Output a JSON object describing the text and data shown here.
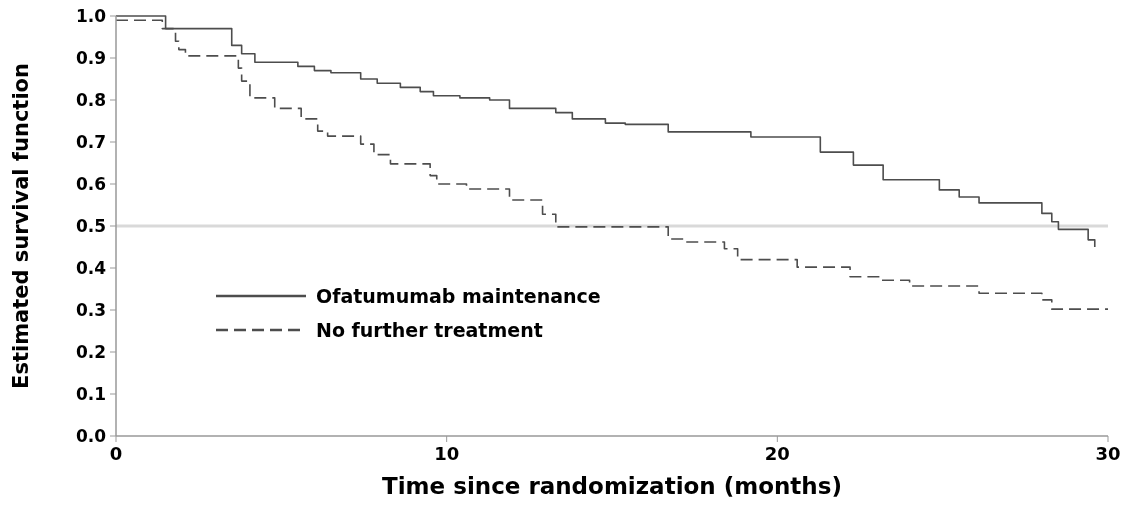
{
  "chart_data": {
    "type": "step",
    "xlabel": "Time since randomization (months)",
    "ylabel": "Estimated survival function",
    "xlim": [
      0,
      30
    ],
    "xticks": [
      0,
      10,
      20,
      30
    ],
    "ylim": [
      0,
      1.0
    ],
    "yticks": [
      {
        "value": 0,
        "label": "0.0"
      },
      {
        "value": 0.1,
        "label": "0.1"
      },
      {
        "value": 0.2,
        "label": "0.2"
      },
      {
        "value": 0.3,
        "label": "0.3"
      },
      {
        "value": 0.4,
        "label": "0.4"
      },
      {
        "value": 0.5,
        "label": "0.5"
      },
      {
        "value": 0.6,
        "label": "0.6"
      },
      {
        "value": 0.7,
        "label": "0.7"
      },
      {
        "value": 0.8,
        "label": "0.8"
      },
      {
        "value": 0.9,
        "label": "0.9"
      },
      {
        "value": 1.0,
        "label": "1.0"
      }
    ],
    "grid": false,
    "legend": "bottom left",
    "marker": "none",
    "ref_lines": [
      {
        "axis": "y",
        "value": 0.5,
        "color": "#d9d9d9"
      }
    ],
    "series": [
      {
        "name": "Ofatumumab maintenance",
        "color": "#4d4d4d",
        "line_style": "solid",
        "x": [
          0,
          1.5,
          3.5,
          3.8,
          4.2,
          5.5,
          6.0,
          6.5,
          7.4,
          7.9,
          8.6,
          9.2,
          9.6,
          10.4,
          11.3,
          11.9,
          13.3,
          13.8,
          14.8,
          15.4,
          16.7,
          19.2,
          21.3,
          22.3,
          23.2,
          24.9,
          25.5,
          26.1,
          28.0,
          28.3,
          28.5,
          29.4,
          29.6
        ],
        "values": [
          1.0,
          0.97,
          0.93,
          0.91,
          0.89,
          0.88,
          0.87,
          0.865,
          0.85,
          0.84,
          0.83,
          0.82,
          0.81,
          0.805,
          0.8,
          0.78,
          0.77,
          0.755,
          0.745,
          0.742,
          0.724,
          0.712,
          0.676,
          0.645,
          0.61,
          0.586,
          0.569,
          0.555,
          0.53,
          0.51,
          0.492,
          0.467,
          0.45
        ]
      },
      {
        "name": "No further treatment",
        "color": "#4d4d4d",
        "line_style": "dashed",
        "x": [
          0,
          1.4,
          1.8,
          1.9,
          2.1,
          3.7,
          3.8,
          4.05,
          4.8,
          5.6,
          6.1,
          6.4,
          7.4,
          7.8,
          8.3,
          9.5,
          9.7,
          10.6,
          11.9,
          12.9,
          13.3,
          16.7,
          17.2,
          18.4,
          18.8,
          20.6,
          22.2,
          23.1,
          24.0,
          26.1,
          28.0,
          28.3,
          30.0
        ],
        "values": [
          0.99,
          0.97,
          0.94,
          0.92,
          0.905,
          0.876,
          0.845,
          0.805,
          0.78,
          0.755,
          0.726,
          0.714,
          0.695,
          0.67,
          0.648,
          0.62,
          0.6,
          0.588,
          0.562,
          0.528,
          0.498,
          0.469,
          0.462,
          0.446,
          0.42,
          0.402,
          0.379,
          0.371,
          0.357,
          0.34,
          0.324,
          0.302,
          0.302
        ]
      }
    ]
  }
}
